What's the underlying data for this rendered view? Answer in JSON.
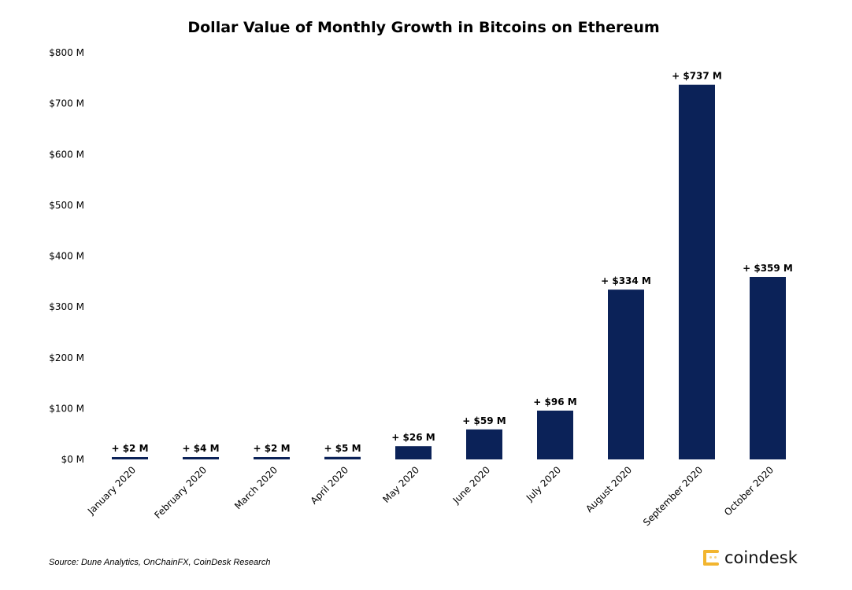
{
  "chart_data": {
    "type": "bar",
    "title": "Dollar Value of Monthly Growth in Bitcoins on Ethereum",
    "categories": [
      "January 2020",
      "February 2020",
      "March 2020",
      "April 2020",
      "May 2020",
      "June 2020",
      "July 2020",
      "August 2020",
      "September 2020",
      "October 2020"
    ],
    "values": [
      2,
      4,
      2,
      5,
      26,
      59,
      96,
      334,
      737,
      359
    ],
    "data_labels": [
      "+ $2 M",
      "+ $4 M",
      "+ $2 M",
      "+ $5 M",
      "+ $26 M",
      "+ $59 M",
      "+ $96 M",
      "+ $334 M",
      "+ $737 M",
      "+ $359 M"
    ],
    "ylim": [
      0,
      800
    ],
    "yticks": [
      0,
      100,
      200,
      300,
      400,
      500,
      600,
      700,
      800
    ],
    "ytick_labels": [
      "$0 M",
      "$100 M",
      "$200 M",
      "$300 M",
      "$400 M",
      "$500 M",
      "$600 M",
      "$700 M",
      "$800 M"
    ],
    "xlabel": "",
    "ylabel": "",
    "grid": false,
    "bar_color": "#0b2258"
  },
  "footer": {
    "source": "Source: Dune Analytics, OnChainFX, CoinDesk Research",
    "logo_text": "coindesk",
    "logo_color": "#f2b52f"
  }
}
